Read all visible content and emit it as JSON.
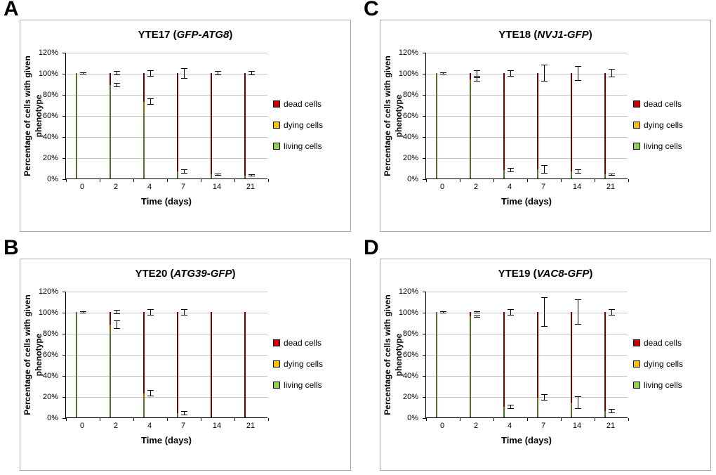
{
  "figure": {
    "background": "#ffffff"
  },
  "chart_common": {
    "ylabel": "Percentage of cells with given phenotype",
    "xlabel": "Time (days)",
    "yticks": [
      "0%",
      "20%",
      "40%",
      "60%",
      "80%",
      "100%",
      "120%"
    ],
    "ylim": [
      0,
      120
    ],
    "categories": [
      "0",
      "2",
      "4",
      "7",
      "14",
      "21"
    ],
    "grid": "horizontal",
    "legend_position": "right",
    "legend": [
      {
        "label": "dead cells",
        "color": "#cc0000"
      },
      {
        "label": "dying cells",
        "color": "#ffc000"
      },
      {
        "label": "living cells",
        "color": "#92d050"
      }
    ]
  },
  "chart_data": [
    {
      "type": "bar",
      "stacked": true,
      "panel": "A",
      "title": "YTE17 (GFP-ATG8)",
      "title_parts": {
        "prefix": "YTE17 (",
        "gene": "GFP-ATG8",
        "suffix": ")"
      },
      "categories": [
        "0",
        "2",
        "4",
        "7",
        "14",
        "21"
      ],
      "series": [
        {
          "name": "living cells",
          "color": "#92d050",
          "values": [
            100,
            87,
            62,
            6,
            4,
            2
          ]
        },
        {
          "name": "dying cells",
          "color": "#ffc000",
          "values": [
            0,
            2,
            11,
            1,
            0,
            1
          ]
        },
        {
          "name": "dead cells",
          "color": "#cc0000",
          "values": [
            0,
            11,
            27,
            93,
            96,
            97
          ]
        }
      ],
      "error_bars": {
        "inner_top": [
          0,
          2,
          3,
          2,
          1,
          1
        ],
        "stack_top": [
          1,
          2,
          3,
          5,
          2,
          2
        ]
      }
    },
    {
      "type": "bar",
      "stacked": true,
      "panel": "B",
      "title": "YTE20 (ATG39-GFP)",
      "title_parts": {
        "prefix": "YTE20 (",
        "gene": "ATG39-GFP",
        "suffix": ")"
      },
      "categories": [
        "0",
        "2",
        "4",
        "7",
        "14",
        "21"
      ],
      "series": [
        {
          "name": "living cells",
          "color": "#92d050",
          "values": [
            100,
            80,
            16,
            3,
            0,
            0
          ]
        },
        {
          "name": "dying cells",
          "color": "#ffc000",
          "values": [
            0,
            8,
            7,
            1,
            0,
            0
          ]
        },
        {
          "name": "dead cells",
          "color": "#cc0000",
          "values": [
            0,
            12,
            77,
            96,
            100,
            100
          ]
        }
      ],
      "error_bars": {
        "inner_top": [
          0,
          4,
          3,
          2,
          0,
          0
        ],
        "stack_top": [
          1,
          2,
          3,
          3,
          0,
          0
        ]
      }
    },
    {
      "type": "bar",
      "stacked": true,
      "panel": "C",
      "title": "YTE18 (NVJ1-GFP)",
      "title_parts": {
        "prefix": "YTE18 (",
        "gene": "NVJ1-GFP",
        "suffix": ")"
      },
      "categories": [
        "0",
        "2",
        "4",
        "7",
        "14",
        "21"
      ],
      "series": [
        {
          "name": "living cells",
          "color": "#92d050",
          "values": [
            100,
            91,
            7,
            8,
            6,
            3
          ]
        },
        {
          "name": "dying cells",
          "color": "#ffc000",
          "values": [
            0,
            3,
            1,
            1,
            1,
            1
          ]
        },
        {
          "name": "dead cells",
          "color": "#cc0000",
          "values": [
            0,
            6,
            92,
            91,
            93,
            96
          ]
        }
      ],
      "error_bars": {
        "inner_top": [
          0,
          2,
          2,
          4,
          2,
          1
        ],
        "stack_top": [
          1,
          3,
          3,
          8,
          7,
          4
        ]
      }
    },
    {
      "type": "bar",
      "stacked": true,
      "panel": "D",
      "title": "YTE19 (VAC8-GFP)",
      "title_parts": {
        "prefix": "YTE19 (",
        "gene": "VAC8-GFP",
        "suffix": ")"
      },
      "categories": [
        "0",
        "2",
        "4",
        "7",
        "14",
        "21"
      ],
      "series": [
        {
          "name": "living cells",
          "color": "#92d050",
          "values": [
            100,
            95,
            9,
            15,
            11,
            5
          ]
        },
        {
          "name": "dying cells",
          "color": "#ffc000",
          "values": [
            0,
            1,
            1,
            4,
            3,
            1
          ]
        },
        {
          "name": "dead cells",
          "color": "#cc0000",
          "values": [
            0,
            4,
            90,
            81,
            86,
            94
          ]
        }
      ],
      "error_bars": {
        "inner_top": [
          0,
          1,
          2,
          3,
          6,
          2
        ],
        "stack_top": [
          1,
          1,
          3,
          14,
          12,
          3
        ]
      }
    }
  ]
}
